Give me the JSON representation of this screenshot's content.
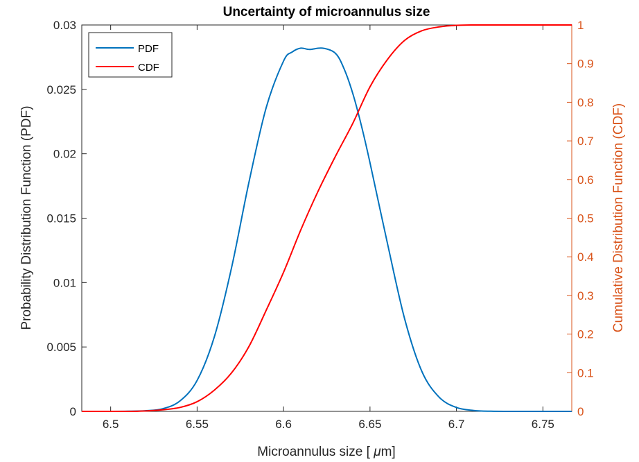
{
  "chart_data": {
    "type": "line",
    "title": "Uncertainty of microannulus size",
    "xlabel_prefix": "Microannulus size [ ",
    "xlabel_unit": "μ",
    "xlabel_suffix": "m]",
    "ylabel_left": "Probability Distribution Function (PDF)",
    "ylabel_right": "Cumulative Distribution Function (CDF)",
    "xlim": [
      6.4833,
      6.7667
    ],
    "ylim_left": [
      0,
      0.03
    ],
    "ylim_right": [
      0,
      1
    ],
    "x_ticks": [
      "6.5",
      "6.55",
      "6.6",
      "6.65",
      "6.7",
      "6.75"
    ],
    "x_tick_values": [
      6.5,
      6.55,
      6.6,
      6.65,
      6.7,
      6.75
    ],
    "y_left_ticks": [
      "0",
      "0.005",
      "0.01",
      "0.015",
      "0.02",
      "0.025",
      "0.03"
    ],
    "y_left_tick_values": [
      0,
      0.005,
      0.01,
      0.015,
      0.02,
      0.025,
      0.03
    ],
    "y_right_ticks": [
      "0",
      "0.1",
      "0.2",
      "0.3",
      "0.4",
      "0.5",
      "0.6",
      "0.7",
      "0.8",
      "0.9",
      "1"
    ],
    "y_right_tick_values": [
      0,
      0.1,
      0.2,
      0.3,
      0.4,
      0.5,
      0.6,
      0.7,
      0.8,
      0.9,
      1.0
    ],
    "grid": false,
    "legend_position": "top-left",
    "series": [
      {
        "name": "PDF",
        "axis": "left",
        "color": "#0072bd",
        "x": [
          6.4833,
          6.5,
          6.51,
          6.52,
          6.53,
          6.54,
          6.55,
          6.56,
          6.57,
          6.58,
          6.59,
          6.6,
          6.605,
          6.61,
          6.615,
          6.6225,
          6.63,
          6.635,
          6.64,
          6.645,
          6.65,
          6.66,
          6.67,
          6.68,
          6.69,
          6.7,
          6.71,
          6.72,
          6.73,
          6.74,
          6.7667
        ],
        "y": [
          0.0,
          0.0,
          1e-05,
          5e-05,
          0.0002,
          0.0008,
          0.0024,
          0.0058,
          0.0112,
          0.0178,
          0.0236,
          0.0272,
          0.0279,
          0.0282,
          0.0281,
          0.0282,
          0.0278,
          0.0266,
          0.0247,
          0.0222,
          0.0193,
          0.0131,
          0.0072,
          0.0031,
          0.0011,
          0.0003,
          7e-05,
          1e-05,
          0.0,
          0.0,
          0.0
        ]
      },
      {
        "name": "CDF",
        "axis": "right",
        "color": "#ff0000",
        "x": [
          6.4833,
          6.51,
          6.52,
          6.53,
          6.54,
          6.55,
          6.56,
          6.57,
          6.58,
          6.59,
          6.6,
          6.61,
          6.62,
          6.63,
          6.64,
          6.65,
          6.66,
          6.67,
          6.68,
          6.69,
          6.7,
          6.71,
          6.72,
          6.7667
        ],
        "y": [
          0.0,
          0.0,
          0.001,
          0.004,
          0.01,
          0.025,
          0.055,
          0.1,
          0.168,
          0.262,
          0.36,
          0.47,
          0.57,
          0.66,
          0.745,
          0.84,
          0.91,
          0.96,
          0.985,
          0.995,
          0.999,
          1.0,
          1.0,
          1.0
        ]
      }
    ]
  }
}
